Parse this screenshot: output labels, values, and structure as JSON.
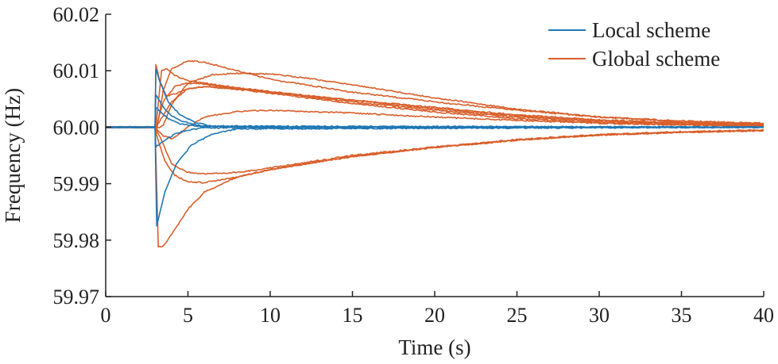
{
  "chart_data": {
    "type": "line",
    "title": "",
    "xlabel": "Time (s)",
    "ylabel": "Frequency (Hz)",
    "xlim": [
      0,
      40
    ],
    "ylim": [
      59.97,
      60.02
    ],
    "xticks": [
      0,
      5,
      10,
      15,
      20,
      25,
      30,
      35,
      40
    ],
    "xtick_labels": [
      "0",
      "5",
      "10",
      "15",
      "20",
      "25",
      "30",
      "35",
      "40"
    ],
    "yticks": [
      59.97,
      59.98,
      59.99,
      60.0,
      60.01,
      60.02
    ],
    "ytick_labels": [
      "59.97",
      "59.98",
      "59.99",
      "60.00",
      "60.01",
      "60.02"
    ],
    "grid": false,
    "legend_position": "top-right",
    "colors": {
      "local": "#1f77b4",
      "global": "#d95f2b"
    },
    "legend": [
      {
        "label": "Local scheme",
        "color": "#1f77b4"
      },
      {
        "label": "Global scheme",
        "color": "#d95f2b"
      }
    ],
    "series": [
      {
        "group": "local",
        "x": [
          0,
          3,
          3.05,
          3.3,
          3.8,
          4.5,
          5.5,
          6.5,
          8,
          40
        ],
        "y": [
          60.0,
          60.0,
          60.0102,
          60.008,
          60.0045,
          60.0022,
          60.0008,
          60.0002,
          60.0,
          60.0
        ]
      },
      {
        "group": "local",
        "x": [
          0,
          3,
          3.05,
          3.3,
          3.8,
          4.5,
          5.5,
          6.5,
          40
        ],
        "y": [
          60.0,
          60.0,
          60.0058,
          60.0045,
          60.0025,
          60.0012,
          60.0004,
          60.0001,
          60.0
        ]
      },
      {
        "group": "local",
        "x": [
          0,
          3,
          3.05,
          3.3,
          3.8,
          4.5,
          5.5,
          40
        ],
        "y": [
          60.0,
          60.0,
          60.0035,
          60.0028,
          60.0015,
          60.0006,
          60.0002,
          60.0
        ]
      },
      {
        "group": "local",
        "x": [
          0,
          3,
          3.1,
          3.6,
          4.3,
          5.2,
          6.5,
          8,
          40
        ],
        "y": [
          60.0,
          60.0,
          59.9825,
          59.9885,
          59.9935,
          59.9968,
          59.9988,
          59.9997,
          60.0
        ]
      },
      {
        "group": "local",
        "x": [
          0,
          3,
          3.05,
          3.5,
          4.2,
          5,
          6,
          40
        ],
        "y": [
          60.0,
          60.0,
          59.9965,
          59.9975,
          59.9988,
          59.9995,
          59.9999,
          60.0
        ]
      },
      {
        "group": "global",
        "x": [
          0,
          3,
          3.05,
          3.3,
          3.7,
          4.3,
          5,
          6,
          8,
          10,
          15,
          20,
          25,
          30,
          35,
          40
        ],
        "y": [
          60.0,
          60.0,
          60.0112,
          60.008,
          60.0055,
          60.006,
          60.0068,
          60.0072,
          60.0068,
          60.0062,
          60.0048,
          60.0035,
          60.0022,
          60.0013,
          60.0008,
          60.0005
        ]
      },
      {
        "group": "global",
        "x": [
          0,
          3,
          3.1,
          3.5,
          4,
          5,
          6,
          8,
          10,
          15,
          20,
          25,
          30,
          35,
          40
        ],
        "y": [
          60.0,
          60.0,
          59.9995,
          60.0065,
          60.0103,
          60.0118,
          60.0115,
          60.01,
          60.0085,
          60.0062,
          60.0045,
          60.003,
          60.0018,
          60.0011,
          60.0007
        ]
      },
      {
        "group": "global",
        "x": [
          0,
          3,
          3.1,
          3.5,
          4,
          5,
          6.5,
          8.5,
          10,
          12,
          15,
          20,
          25,
          30,
          35,
          40
        ],
        "y": [
          60.0,
          60.0,
          59.9998,
          60.0003,
          60.004,
          60.0078,
          60.0093,
          60.0096,
          60.0094,
          60.0088,
          60.0075,
          60.0052,
          60.0032,
          60.0018,
          60.001,
          60.0005
        ]
      },
      {
        "group": "global",
        "x": [
          0,
          3,
          3.1,
          3.4,
          3.7,
          4.2,
          5,
          6,
          8,
          10,
          15,
          20,
          25,
          30,
          35,
          40
        ],
        "y": [
          60.0,
          60.0,
          60.0015,
          60.01,
          60.0103,
          60.0092,
          60.0082,
          60.0078,
          60.007,
          60.0063,
          60.0048,
          60.0033,
          60.002,
          60.0012,
          60.0007,
          60.0004
        ]
      },
      {
        "group": "global",
        "x": [
          0,
          3,
          3.1,
          3.5,
          4.2,
          5,
          6,
          8,
          10,
          15,
          20,
          25,
          30,
          35,
          40
        ],
        "y": [
          60.0,
          60.0,
          60.0005,
          60.0045,
          60.0072,
          60.0078,
          60.0076,
          60.0069,
          60.0062,
          60.0045,
          60.003,
          60.0018,
          60.001,
          60.0006,
          60.0003
        ]
      },
      {
        "group": "global",
        "x": [
          0,
          3,
          3.1,
          3.5,
          4,
          5,
          6,
          8,
          10,
          15,
          20,
          25,
          30,
          35,
          40
        ],
        "y": [
          60.0,
          60.0,
          60.0002,
          60.002,
          60.0045,
          60.0068,
          60.0072,
          60.0067,
          60.006,
          60.0042,
          60.0027,
          60.0015,
          60.0008,
          60.0004,
          60.0002
        ]
      },
      {
        "group": "global",
        "x": [
          0,
          3,
          3.1,
          3.5,
          4,
          4.5,
          5,
          6,
          8,
          10,
          15,
          20,
          25,
          30,
          35,
          40
        ],
        "y": [
          60.0,
          60.0,
          59.9995,
          59.9985,
          59.998,
          59.9988,
          60.0,
          60.0018,
          60.0028,
          60.003,
          60.0025,
          60.0018,
          60.0012,
          60.0007,
          60.0004,
          60.0002
        ]
      },
      {
        "group": "global",
        "x": [
          0,
          3,
          3.2,
          3.5,
          4,
          5,
          6,
          8,
          10,
          15,
          20,
          25,
          30,
          35,
          40
        ],
        "y": [
          60.0,
          60.0,
          59.9788,
          59.979,
          59.981,
          59.9855,
          59.9885,
          59.9912,
          59.9925,
          59.9948,
          59.9964,
          59.9977,
          59.9986,
          59.9991,
          59.9994
        ]
      },
      {
        "group": "global",
        "x": [
          0,
          3,
          3.1,
          3.6,
          4.2,
          5,
          6,
          8,
          10,
          15,
          20,
          25,
          30,
          35,
          40
        ],
        "y": [
          60.0,
          60.0,
          59.9985,
          59.994,
          59.9915,
          59.9903,
          59.9902,
          59.9912,
          59.9925,
          59.9948,
          59.9964,
          59.9977,
          59.9986,
          59.9991,
          59.9994
        ]
      },
      {
        "group": "global",
        "x": [
          0,
          3,
          3.1,
          3.5,
          4,
          5,
          6,
          8,
          10,
          15,
          20,
          25,
          30,
          35,
          40
        ],
        "y": [
          60.0,
          60.0,
          59.9995,
          59.997,
          59.9935,
          59.992,
          59.9917,
          59.992,
          59.9928,
          59.995,
          59.9965,
          59.9978,
          59.9987,
          59.9992,
          59.9995
        ]
      }
    ]
  }
}
